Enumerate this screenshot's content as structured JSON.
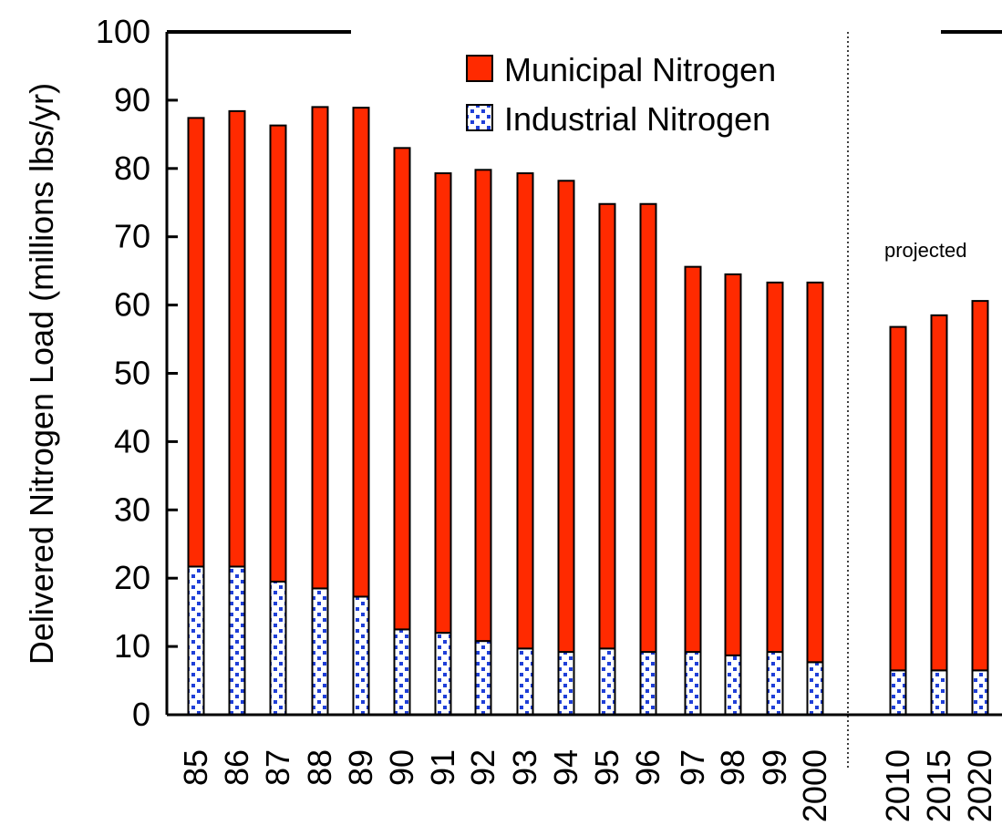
{
  "chart_data": {
    "type": "bar",
    "stacked": true,
    "categories": [
      "85",
      "86",
      "87",
      "88",
      "89",
      "90",
      "91",
      "92",
      "93",
      "94",
      "95",
      "96",
      "97",
      "98",
      "99",
      "2000",
      "2010",
      "2015",
      "2020"
    ],
    "series": [
      {
        "name": "Industrial Nitrogen",
        "color": "#1f3fd8",
        "pattern": "blue-checker-on-white",
        "values": [
          21.7,
          21.7,
          19.5,
          18.5,
          17.3,
          12.5,
          12.0,
          10.8,
          9.7,
          9.2,
          9.7,
          9.2,
          9.2,
          8.7,
          9.2,
          7.7,
          6.5,
          6.5,
          6.5
        ]
      },
      {
        "name": "Municipal Nitrogen",
        "color": "#ff2a00",
        "values": [
          65.7,
          66.7,
          66.8,
          70.5,
          71.6,
          70.5,
          67.3,
          69.0,
          69.6,
          69.0,
          65.1,
          65.6,
          56.4,
          55.8,
          54.1,
          55.6,
          50.3,
          52.0,
          54.1
        ]
      }
    ],
    "ylabel": "Delivered Nitrogen Load (millions lbs/yr)",
    "xlabel": "",
    "ylim": [
      0,
      100
    ],
    "yticks": [
      0,
      10,
      20,
      30,
      40,
      50,
      60,
      70,
      80,
      90,
      100
    ],
    "legend": {
      "placement": "top-right"
    },
    "grid": false,
    "annotations": [
      {
        "text": "projected"
      }
    ]
  }
}
